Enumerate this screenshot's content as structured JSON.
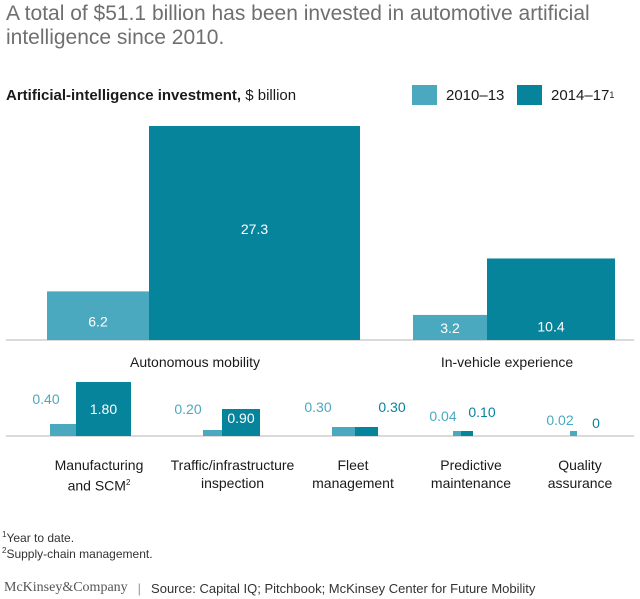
{
  "title": "A total of $51.1 billion has been invested in automotive artificial intelligence since 2010.",
  "subtitle_bold": "Artificial-intelligence investment,",
  "subtitle_unit": "$ billion",
  "legend": [
    {
      "label": "2010–13",
      "sup": "",
      "color": "#4aa9bf"
    },
    {
      "label": "2014–17",
      "sup": "1",
      "color": "#06849c"
    }
  ],
  "chart_data": [
    {
      "type": "bar",
      "title": "Artificial-intelligence investment, $ billion",
      "series_names": [
        "2010–13",
        "2014–17"
      ],
      "categories": [
        "Autonomous mobility",
        "In-vehicle experience"
      ],
      "series": [
        {
          "name": "2010–13",
          "values": [
            6.2,
            3.2
          ],
          "labels": [
            "6.2",
            "3.2"
          ]
        },
        {
          "name": "2014–17",
          "values": [
            27.3,
            10.4
          ],
          "labels": [
            "27.3",
            "10.4"
          ]
        }
      ]
    },
    {
      "type": "bar",
      "categories": [
        "Manufacturing and SCM",
        "Traffic/infrastructure inspection",
        "Fleet management",
        "Predictive maintenance",
        "Quality assurance"
      ],
      "series": [
        {
          "name": "2010–13",
          "values": [
            0.4,
            0.2,
            0.3,
            0.04,
            0.02
          ],
          "labels": [
            "0.40",
            "0.20",
            "0.30",
            "0.04",
            "0.02"
          ]
        },
        {
          "name": "2014–17",
          "values": [
            1.8,
            0.9,
            0.3,
            0.1,
            0
          ],
          "labels": [
            "1.80",
            "0.90",
            "0.30",
            "0.10",
            "0"
          ]
        }
      ]
    }
  ],
  "small_labels": {
    "manufacturing_line1": "Manufacturing",
    "manufacturing_line2": "and SCM",
    "manufacturing_sup": "2",
    "traffic_line1": "Traffic/infrastructure",
    "traffic_line2": "inspection",
    "fleet_line1": "Fleet",
    "fleet_line2": "management",
    "predictive_line1": "Predictive",
    "predictive_line2": "maintenance",
    "quality_line1": "Quality",
    "quality_line2": "assurance"
  },
  "footnotes": [
    {
      "sup": "1",
      "text": "Year to date."
    },
    {
      "sup": "2",
      "text": "Supply-chain management."
    }
  ],
  "footer": {
    "brand": "McKinsey&Company",
    "separator": "|",
    "source": "Source: Capital IQ; Pitchbook; McKinsey Center for Future Mobility"
  }
}
